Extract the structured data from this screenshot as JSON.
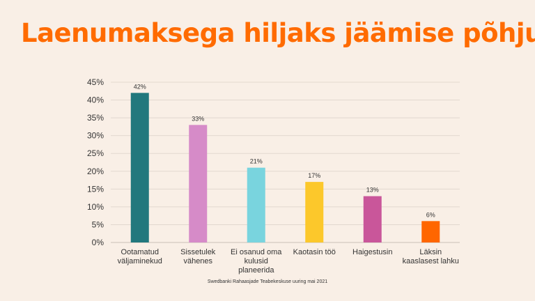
{
  "title": "Laenumaksega hiljaks jäämise põhjus",
  "source": "Swedbanki Rahaasjade Teabekeskuse uuring mai 2021",
  "colors": {
    "background": "#f9efe6",
    "title": "#ff6b00",
    "grid": "#e2d8cf",
    "axis": "#c9bfb6",
    "text": "#333333"
  },
  "chart_data": {
    "type": "bar",
    "categories": [
      [
        "Ootamatud",
        "väljaminekud"
      ],
      [
        "Sissetulek",
        "vähenes"
      ],
      [
        "Ei osanud oma",
        "kulusid",
        "planeerida"
      ],
      [
        "Kaotasin töö"
      ],
      [
        "Haigestusin"
      ],
      [
        "Läksin",
        "kaaslasest lahku"
      ]
    ],
    "values": [
      42,
      33,
      21,
      17,
      13,
      6
    ],
    "data_labels": [
      "42%",
      "33%",
      "21%",
      "17%",
      "13%",
      "6%"
    ],
    "bar_colors": [
      "#22787d",
      "#d68bc8",
      "#79d4de",
      "#fcc82b",
      "#c9569a",
      "#ff6600"
    ],
    "ylim": [
      0,
      45
    ],
    "yticks": [
      0,
      5,
      10,
      15,
      20,
      25,
      30,
      35,
      40,
      45
    ],
    "ytick_labels": [
      "0%",
      "5%",
      "10%",
      "15%",
      "20%",
      "25%",
      "30%",
      "35%",
      "40%",
      "45%"
    ],
    "grid": true,
    "legend": "none"
  }
}
